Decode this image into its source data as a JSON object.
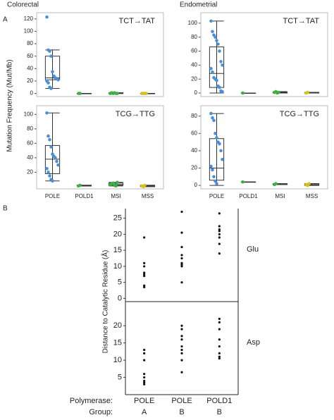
{
  "panel_a": {
    "label": "A",
    "y_label": "Mutation Frequency (Mut/Mb)",
    "column_titles": [
      "Colorectal",
      "Endometrial"
    ]
  },
  "panel_b": {
    "label": "B",
    "y_label": "Distance to Catalytic Residue (Å)",
    "row_labels": [
      "Polymerase:",
      "Group:"
    ]
  },
  "chart_data": [
    {
      "type": "box",
      "annotation": "TCT→TAT",
      "ylim": [
        -5,
        130
      ],
      "yticks": [
        0,
        20,
        40,
        60,
        80,
        100,
        120
      ],
      "series": [
        {
          "color": "#4a8fdc",
          "values": [
            123,
            70,
            68,
            60,
            35,
            28,
            25,
            24,
            22,
            20,
            17,
            10,
            8
          ],
          "box": {
            "low": 8,
            "q1": 22,
            "median": 25,
            "q3": 60,
            "high": 70
          }
        },
        {
          "color": "#3cb043",
          "values": [
            0,
            0
          ],
          "box": {
            "low": 0,
            "q1": 0,
            "median": 0,
            "q3": 0,
            "high": 0
          }
        },
        {
          "color": "#3cb043",
          "values": [
            0,
            1,
            0,
            1,
            0,
            0
          ],
          "box": {
            "low": 0,
            "q1": 0,
            "median": 0,
            "q3": 1,
            "high": 1
          }
        },
        {
          "color": "#d4c21a",
          "values": [
            0,
            0,
            0,
            0
          ],
          "box": {
            "low": 0,
            "q1": 0,
            "median": 0,
            "q3": 0,
            "high": 0
          }
        }
      ]
    },
    {
      "type": "box",
      "annotation": "TCT→TAT",
      "ylim": [
        -5,
        115
      ],
      "yticks": [
        0,
        20,
        40,
        60,
        80,
        100
      ],
      "series": [
        {
          "color": "#4a8fdc",
          "values": [
            103,
            88,
            83,
            80,
            75,
            70,
            60,
            45,
            40,
            35,
            30,
            22,
            20,
            18,
            10,
            8,
            3,
            2
          ],
          "box": {
            "low": 0,
            "q1": 8,
            "median": 28,
            "q3": 66,
            "high": 103
          }
        },
        {
          "color": "#3cb043",
          "values": [
            0
          ],
          "box": {
            "low": 0,
            "q1": 0,
            "median": 0,
            "q3": 0,
            "high": 0
          }
        },
        {
          "color": "#3cb043",
          "values": [
            1,
            2,
            0,
            1
          ],
          "box": {
            "low": 0,
            "q1": 0,
            "median": 1,
            "q3": 1,
            "high": 2
          }
        },
        {
          "color": "#d4c21a",
          "values": [
            0,
            1
          ],
          "box": {
            "low": 0,
            "q1": 0,
            "median": 0,
            "q3": 1,
            "high": 1
          }
        }
      ]
    },
    {
      "type": "box",
      "annotation": "TCG→TTG",
      "ylim": [
        -3,
        112
      ],
      "yticks": [
        20,
        40,
        60,
        80,
        100
      ],
      "categories": [
        "POLE",
        "POLD1",
        "MSI",
        "MSS"
      ],
      "series": [
        {
          "color": "#4a8fdc",
          "values": [
            102,
            70,
            65,
            55,
            45,
            42,
            40,
            35,
            30,
            25,
            20,
            15,
            10,
            8
          ],
          "box": {
            "low": 8,
            "q1": 18,
            "median": 38,
            "q3": 57,
            "high": 102
          }
        },
        {
          "color": "#3cb043",
          "values": [
            1,
            2
          ],
          "box": {
            "low": 1,
            "q1": 1,
            "median": 1,
            "q3": 2,
            "high": 2
          }
        },
        {
          "color": "#3cb043",
          "values": [
            3,
            4,
            5,
            2,
            1,
            6
          ],
          "box": {
            "low": 1,
            "q1": 2,
            "median": 3,
            "q3": 5,
            "high": 6
          }
        },
        {
          "color": "#d4c21a",
          "values": [
            1,
            0,
            2
          ],
          "box": {
            "low": 0,
            "q1": 0,
            "median": 1,
            "q3": 2,
            "high": 2
          }
        }
      ]
    },
    {
      "type": "box",
      "annotation": "TCG→TTG",
      "ylim": [
        -4,
        92
      ],
      "yticks": [
        0,
        20,
        40,
        60,
        80
      ],
      "categories": [
        "POLE",
        "POLD1",
        "MSI",
        "MSS"
      ],
      "series": [
        {
          "color": "#4a8fdc",
          "values": [
            83,
            78,
            75,
            60,
            55,
            50,
            48,
            40,
            30,
            22,
            18,
            10,
            5,
            2
          ],
          "box": {
            "low": 0,
            "q1": 6,
            "median": 20,
            "q3": 54,
            "high": 83
          }
        },
        {
          "color": "#3cb043",
          "values": [
            4
          ],
          "box": {
            "low": 4,
            "q1": 4,
            "median": 4,
            "q3": 4,
            "high": 4
          }
        },
        {
          "color": "#3cb043",
          "values": [
            1,
            2
          ],
          "box": {
            "low": 1,
            "q1": 1,
            "median": 1,
            "q3": 2,
            "high": 2
          }
        },
        {
          "color": "#d4c21a",
          "values": [
            1,
            0,
            2
          ],
          "box": {
            "low": 0,
            "q1": 0,
            "median": 1,
            "q3": 2,
            "high": 2
          }
        }
      ]
    },
    {
      "type": "strip",
      "annotation": "Glu",
      "ylim": [
        -1,
        28
      ],
      "yticks": [
        0,
        5,
        10,
        15,
        20,
        25
      ],
      "color": "#111111",
      "series": [
        {
          "values": [
            19,
            11,
            10,
            8,
            7.5,
            7,
            4,
            3.5
          ]
        },
        {
          "values": [
            27,
            20.5,
            16,
            13.5,
            12.5,
            11,
            10.5,
            10,
            5
          ]
        },
        {
          "values": [
            26.5,
            22.5,
            21.5,
            21,
            20,
            19,
            17,
            14
          ]
        }
      ]
    },
    {
      "type": "strip",
      "annotation": "Asp",
      "ylim": [
        0,
        27
      ],
      "yticks": [
        5,
        10,
        15,
        20
      ],
      "color": "#111111",
      "categories": [
        "POLE",
        "POLE",
        "POLD1"
      ],
      "groups": [
        "A",
        "B",
        "B"
      ],
      "series": [
        {
          "values": [
            13,
            12,
            10,
            6,
            5,
            4,
            3.5,
            3
          ]
        },
        {
          "values": [
            20,
            19,
            17,
            16,
            14,
            13,
            12,
            10,
            6.5
          ]
        },
        {
          "values": [
            22,
            21,
            19,
            16,
            14,
            12,
            11,
            10.5
          ]
        }
      ]
    }
  ]
}
